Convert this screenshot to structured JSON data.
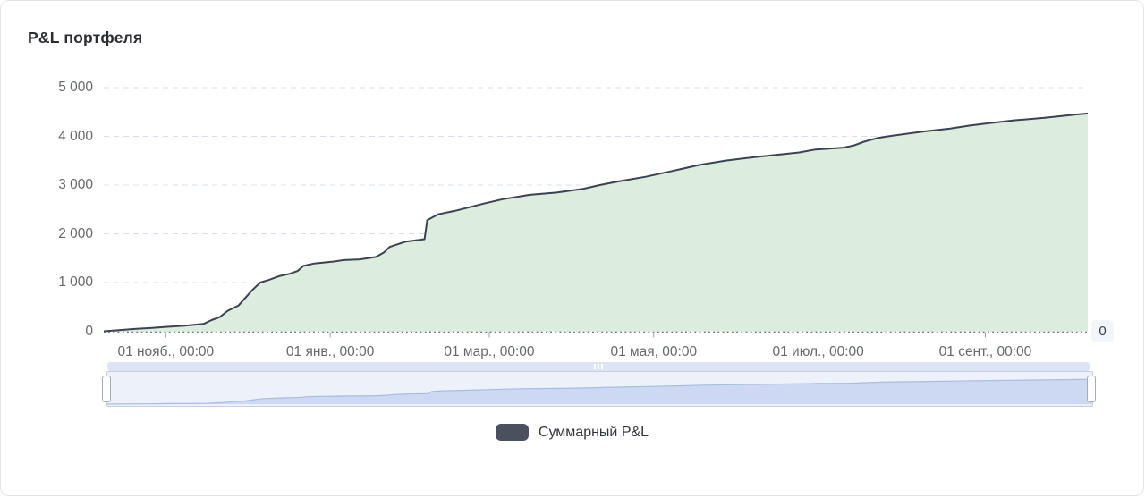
{
  "card": {
    "title": "P&L портфеля"
  },
  "colors": {
    "area_fill": "#dcecdd",
    "line": "#3b4252",
    "gridline": "#d7dfee",
    "axis_label": "#65686d",
    "zero_axis_dots": "#6b7077",
    "tick_mark": "#9aa0a8",
    "navigator_fill": "#cdd9f2",
    "navigator_line": "#a9bce6",
    "scrollbar_track": "#dde4f3",
    "legend_swatch": "#4a515e",
    "right_badge_bg": "#f2f5fa"
  },
  "right_axis_badge": {
    "label": "0"
  },
  "legend": {
    "label": "Суммарный P&L"
  },
  "chart_data": {
    "type": "area",
    "title": "P&L портфеля",
    "series_name": "Суммарный P&L",
    "x_unit": "days_from_range_start",
    "x_range_days": [
      0,
      365
    ],
    "ylim": [
      0,
      5000
    ],
    "grid": "dashed-horizontal",
    "legend_position": "bottom-center",
    "yticks": [
      {
        "value": 0,
        "label": "0"
      },
      {
        "value": 1000,
        "label": "1 000"
      },
      {
        "value": 2000,
        "label": "2 000"
      },
      {
        "value": 3000,
        "label": "3 000"
      },
      {
        "value": 4000,
        "label": "4 000"
      },
      {
        "value": 5000,
        "label": "5 000"
      }
    ],
    "xticks": [
      {
        "day": 23,
        "label": "01 нояб., 00:00"
      },
      {
        "day": 84,
        "label": "01 янв., 00:00"
      },
      {
        "day": 143,
        "label": "01 мар., 00:00"
      },
      {
        "day": 204,
        "label": "01 мая, 00:00"
      },
      {
        "day": 265,
        "label": "01 июл., 00:00"
      },
      {
        "day": 327,
        "label": "01 сент., 00:00"
      }
    ],
    "points": [
      [
        0,
        0
      ],
      [
        5,
        20
      ],
      [
        12,
        50
      ],
      [
        18,
        70
      ],
      [
        23,
        90
      ],
      [
        30,
        115
      ],
      [
        37,
        150
      ],
      [
        40,
        230
      ],
      [
        43,
        290
      ],
      [
        46,
        420
      ],
      [
        50,
        530
      ],
      [
        55,
        840
      ],
      [
        58,
        1000
      ],
      [
        61,
        1050
      ],
      [
        65,
        1130
      ],
      [
        69,
        1180
      ],
      [
        72,
        1240
      ],
      [
        74,
        1340
      ],
      [
        78,
        1390
      ],
      [
        85,
        1430
      ],
      [
        89,
        1460
      ],
      [
        95,
        1475
      ],
      [
        101,
        1525
      ],
      [
        104,
        1620
      ],
      [
        106,
        1730
      ],
      [
        112,
        1840
      ],
      [
        119,
        1890
      ],
      [
        120,
        2280
      ],
      [
        124,
        2400
      ],
      [
        131,
        2480
      ],
      [
        141,
        2620
      ],
      [
        148,
        2710
      ],
      [
        158,
        2800
      ],
      [
        168,
        2845
      ],
      [
        178,
        2925
      ],
      [
        184,
        3000
      ],
      [
        191,
        3075
      ],
      [
        201,
        3170
      ],
      [
        211,
        3290
      ],
      [
        221,
        3415
      ],
      [
        231,
        3505
      ],
      [
        241,
        3570
      ],
      [
        254,
        3645
      ],
      [
        258,
        3670
      ],
      [
        264,
        3730
      ],
      [
        274,
        3765
      ],
      [
        278,
        3810
      ],
      [
        282,
        3890
      ],
      [
        287,
        3965
      ],
      [
        292,
        4010
      ],
      [
        304,
        4100
      ],
      [
        314,
        4160
      ],
      [
        321,
        4220
      ],
      [
        327,
        4260
      ],
      [
        338,
        4330
      ],
      [
        349,
        4380
      ],
      [
        360,
        4445
      ],
      [
        365,
        4470
      ]
    ],
    "right_axis_label": "0"
  },
  "navigator": {
    "selected_range": "full",
    "scrollbar_grip": "triple-bar"
  }
}
